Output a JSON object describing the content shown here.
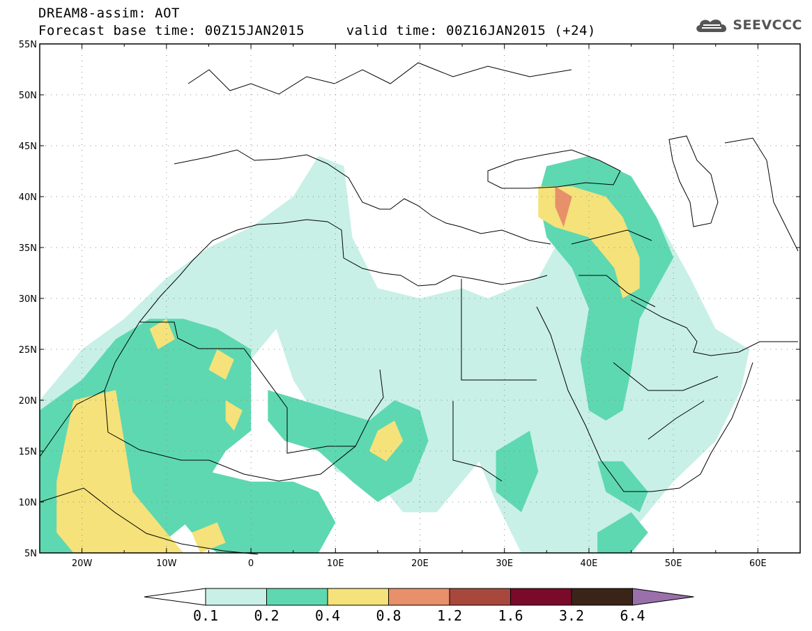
{
  "title": {
    "line1": "DREAM8-assim: AOT",
    "line2": "Forecast base time: 00Z15JAN2015     valid time: 00Z16JAN2015 (+24)"
  },
  "logo": {
    "text": "SEEVCCC",
    "icon": "cloud-icon"
  },
  "map": {
    "lon_range": [
      -25,
      65
    ],
    "lat_range": [
      5,
      55
    ],
    "lat_ticks": [
      {
        "value": 55,
        "label": "55N"
      },
      {
        "value": 50,
        "label": "50N"
      },
      {
        "value": 45,
        "label": "45N"
      },
      {
        "value": 40,
        "label": "40N"
      },
      {
        "value": 35,
        "label": "35N"
      },
      {
        "value": 30,
        "label": "30N"
      },
      {
        "value": 25,
        "label": "25N"
      },
      {
        "value": 20,
        "label": "20N"
      },
      {
        "value": 15,
        "label": "15N"
      },
      {
        "value": 10,
        "label": "10N"
      },
      {
        "value": 5,
        "label": "5N"
      }
    ],
    "lon_ticks": [
      {
        "value": -20,
        "label": "20W"
      },
      {
        "value": -10,
        "label": "10W"
      },
      {
        "value": 0,
        "label": "0"
      },
      {
        "value": 10,
        "label": "10E"
      },
      {
        "value": 20,
        "label": "20E"
      },
      {
        "value": 30,
        "label": "30E"
      },
      {
        "value": 40,
        "label": "40E"
      },
      {
        "value": 50,
        "label": "50E"
      },
      {
        "value": 60,
        "label": "60E"
      }
    ],
    "grid": "dotted",
    "aot_regions": [
      {
        "level": 0,
        "points": [
          [
            -25,
            20
          ],
          [
            -20,
            25
          ],
          [
            -15,
            28
          ],
          [
            -10,
            32
          ],
          [
            -5,
            35
          ],
          [
            0,
            37
          ],
          [
            5,
            40
          ],
          [
            8,
            44
          ],
          [
            11,
            43
          ],
          [
            12,
            36
          ],
          [
            15,
            31
          ],
          [
            20,
            30
          ],
          [
            25,
            31
          ],
          [
            28,
            30
          ],
          [
            34,
            32
          ],
          [
            36,
            35
          ],
          [
            35,
            40
          ],
          [
            38,
            43
          ],
          [
            44,
            42
          ],
          [
            48,
            38
          ],
          [
            52,
            32
          ],
          [
            55,
            27
          ],
          [
            59,
            25
          ],
          [
            58,
            21
          ],
          [
            55,
            16
          ],
          [
            50,
            12
          ],
          [
            46,
            8
          ],
          [
            45,
            5
          ],
          [
            32,
            5
          ],
          [
            29,
            10
          ],
          [
            27,
            14
          ],
          [
            22,
            9
          ],
          [
            18,
            9
          ],
          [
            15,
            12
          ],
          [
            10,
            13
          ],
          [
            8,
            18
          ],
          [
            5,
            22
          ],
          [
            3,
            27
          ],
          [
            0,
            24
          ],
          [
            -3,
            19
          ],
          [
            -8,
            16
          ],
          [
            -10,
            9
          ],
          [
            -12,
            5
          ],
          [
            -25,
            5
          ]
        ]
      },
      {
        "level": 1,
        "points": [
          [
            -25,
            19
          ],
          [
            -20,
            22
          ],
          [
            -16,
            26
          ],
          [
            -12,
            28
          ],
          [
            -8,
            28
          ],
          [
            -4,
            27
          ],
          [
            0,
            25
          ],
          [
            0,
            17
          ],
          [
            -3,
            15
          ],
          [
            -6,
            11
          ],
          [
            -6,
            9
          ],
          [
            -12,
            5
          ],
          [
            -25,
            5
          ]
        ]
      },
      {
        "level": 1,
        "points": [
          [
            -10,
            14
          ],
          [
            -5,
            13
          ],
          [
            0,
            12
          ],
          [
            5,
            12
          ],
          [
            8,
            11
          ],
          [
            10,
            8
          ],
          [
            8,
            5
          ],
          [
            -4,
            5
          ],
          [
            -7,
            7
          ],
          [
            -10,
            10
          ]
        ]
      },
      {
        "level": 1,
        "points": [
          [
            2,
            21
          ],
          [
            6,
            20
          ],
          [
            10,
            19
          ],
          [
            14,
            18
          ],
          [
            17,
            20
          ],
          [
            20,
            19
          ],
          [
            21,
            16
          ],
          [
            19,
            12
          ],
          [
            15,
            10
          ],
          [
            12,
            12
          ],
          [
            8,
            15
          ],
          [
            4,
            16
          ],
          [
            2,
            18
          ]
        ]
      },
      {
        "level": 1,
        "points": [
          [
            35,
            43
          ],
          [
            40,
            44
          ],
          [
            45,
            42
          ],
          [
            48,
            38
          ],
          [
            50,
            34
          ],
          [
            48,
            31
          ],
          [
            46,
            28
          ],
          [
            45,
            23
          ],
          [
            44,
            19
          ],
          [
            42,
            18
          ],
          [
            40,
            19
          ],
          [
            39,
            24
          ],
          [
            40,
            29
          ],
          [
            38,
            33
          ],
          [
            35,
            36
          ],
          [
            34,
            40
          ]
        ]
      },
      {
        "level": 1,
        "points": [
          [
            29,
            15
          ],
          [
            33,
            17
          ],
          [
            34,
            13
          ],
          [
            32,
            9
          ],
          [
            29,
            11
          ]
        ]
      },
      {
        "level": 1,
        "points": [
          [
            41,
            14
          ],
          [
            44,
            14
          ],
          [
            47,
            11
          ],
          [
            46,
            9
          ],
          [
            42,
            11
          ]
        ]
      },
      {
        "level": 1,
        "points": [
          [
            41,
            7
          ],
          [
            45,
            9
          ],
          [
            47,
            7
          ],
          [
            45,
            5
          ],
          [
            41,
            5
          ]
        ]
      },
      {
        "level": 2,
        "points": [
          [
            -21,
            20
          ],
          [
            -16,
            21
          ],
          [
            -15,
            16
          ],
          [
            -14,
            11
          ],
          [
            -11,
            8
          ],
          [
            -8,
            5
          ],
          [
            -21,
            5
          ],
          [
            -23,
            7
          ],
          [
            -23,
            12
          ]
        ]
      },
      {
        "level": 2,
        "points": [
          [
            -12,
            27
          ],
          [
            -10,
            28
          ],
          [
            -9,
            26
          ],
          [
            -11,
            25
          ]
        ]
      },
      {
        "level": 2,
        "points": [
          [
            -4,
            25
          ],
          [
            -2,
            24
          ],
          [
            -3,
            22
          ],
          [
            -5,
            23
          ]
        ]
      },
      {
        "level": 2,
        "points": [
          [
            -3,
            20
          ],
          [
            -1,
            19
          ],
          [
            -2,
            17
          ],
          [
            -3,
            18
          ]
        ]
      },
      {
        "level": 2,
        "points": [
          [
            -7,
            7
          ],
          [
            -4,
            8
          ],
          [
            -3,
            6
          ],
          [
            -6,
            5
          ]
        ]
      },
      {
        "level": 2,
        "points": [
          [
            15,
            17
          ],
          [
            17,
            18
          ],
          [
            18,
            16
          ],
          [
            16,
            14
          ],
          [
            14,
            15
          ]
        ]
      },
      {
        "level": 2,
        "points": [
          [
            34,
            41
          ],
          [
            38,
            41
          ],
          [
            42,
            40
          ],
          [
            44,
            38
          ],
          [
            46,
            34
          ],
          [
            46,
            31
          ],
          [
            44,
            30
          ],
          [
            43,
            33
          ],
          [
            40,
            36
          ],
          [
            36,
            37
          ],
          [
            34,
            38
          ]
        ]
      },
      {
        "level": 3,
        "points": [
          [
            36,
            41
          ],
          [
            38,
            40
          ],
          [
            37,
            37
          ],
          [
            36,
            39
          ]
        ]
      }
    ]
  },
  "colorbar": {
    "labels": [
      "0.1",
      "0.2",
      "0.4",
      "0.8",
      "1.2",
      "1.6",
      "3.2",
      "6.4"
    ],
    "colors": [
      "#ffffff",
      "#c8f0e6",
      "#5ed8b0",
      "#f5e27a",
      "#e8906a",
      "#a8483c",
      "#7a0a2a",
      "#3a2418",
      "#9a70aa"
    ]
  }
}
